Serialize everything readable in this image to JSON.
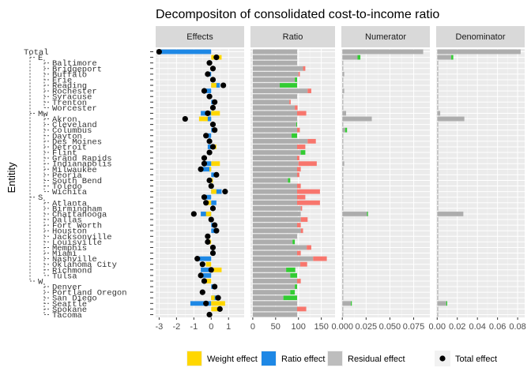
{
  "chart_data": {
    "type": "bar",
    "title": "Decompositon of consolidated cost-to-income ratio",
    "ylabel": "Entitity",
    "panels": [
      {
        "name": "Effects",
        "xlim": [
          -3.2,
          1.9
        ],
        "ticks": [
          -3,
          -2,
          -1,
          0,
          1
        ]
      },
      {
        "name": "Ratio",
        "xlim": [
          -5,
          180
        ],
        "ticks": [
          0,
          50,
          100,
          150
        ]
      },
      {
        "name": "Numerator",
        "xlim": [
          -0.001,
          0.092
        ],
        "ticks": [
          "0.000",
          "0.025",
          "0.050",
          "0.075"
        ]
      },
      {
        "name": "Denominator",
        "xlim": [
          -0.001,
          0.087
        ],
        "ticks": [
          "0.00",
          "0.02",
          "0.04",
          "0.06",
          "0.08"
        ]
      }
    ],
    "legend": [
      {
        "label": "Weight effect",
        "color": "#FFD700"
      },
      {
        "label": "Ratio effect",
        "color": "#1E88E5"
      },
      {
        "label": "Residual effect",
        "color": "#BDBDBD"
      },
      {
        "label": "Total effect",
        "color": "#000000"
      }
    ],
    "colors": {
      "weight": "#FFD700",
      "ratio": "#1E88E5",
      "residual": "#BDBDBD",
      "total": "#000000",
      "positive": "#33CC33",
      "negative": "#F8766D",
      "base": "#ADADAD"
    },
    "entities": [
      {
        "label": "Total",
        "depth": 0,
        "w": 0.0,
        "r": -3.0,
        "t": -3.0,
        "ratio": 97,
        "rd": 0,
        "num": 0.085,
        "nd": 0,
        "den": 0.083,
        "dd": 0
      },
      {
        "label": "E",
        "depth": 1,
        "w": 0.6,
        "r": 0.0,
        "t": 0.3,
        "ratio": 97,
        "rd": 0,
        "num": 0.016,
        "nd": 0.003,
        "den": 0.014,
        "dd": 0.002
      },
      {
        "label": "Baltimore",
        "depth": 2,
        "w": 0.0,
        "r": -0.1,
        "t": -0.1,
        "ratio": 97,
        "rd": 0,
        "num": 0.001,
        "nd": 0,
        "den": 0.001,
        "dd": 0
      },
      {
        "label": "Bridgeport",
        "depth": 2,
        "w": 0.1,
        "r": 0.0,
        "t": 0.1,
        "ratio": 110,
        "rd": 5,
        "num": 0.001,
        "nd": 0,
        "den": 0.001,
        "dd": 0
      },
      {
        "label": "Buffalo",
        "depth": 2,
        "w": 0.0,
        "r": -0.2,
        "t": -0.2,
        "ratio": 100,
        "rd": 3,
        "num": 0.002,
        "nd": 0,
        "den": 0.001,
        "dd": 0
      },
      {
        "label": "Erie",
        "depth": 2,
        "w": 0.1,
        "r": 0.0,
        "t": 0.1,
        "ratio": 97,
        "rd": -5,
        "num": 0.001,
        "nd": 0,
        "den": 0.001,
        "dd": 0
      },
      {
        "label": "Reading",
        "depth": 2,
        "w": 0.3,
        "r": 0.5,
        "t": 0.7,
        "ratio": 97,
        "rd": -38,
        "num": 0.001,
        "nd": 0,
        "den": 0.001,
        "dd": 0
      },
      {
        "label": "Rochester",
        "depth": 2,
        "w": 0.0,
        "r": -0.4,
        "t": -0.4,
        "ratio": 120,
        "rd": 8,
        "num": 0.002,
        "nd": 0,
        "den": 0.001,
        "dd": 0
      },
      {
        "label": "Syracuse",
        "depth": 2,
        "w": 0.0,
        "r": 0.0,
        "t": -0.1,
        "ratio": 97,
        "rd": 0,
        "num": 0.001,
        "nd": 0,
        "den": 0.001,
        "dd": 0
      },
      {
        "label": "Trenton",
        "depth": 2,
        "w": 0.0,
        "r": 0.2,
        "t": 0.2,
        "ratio": 80,
        "rd": 3,
        "num": 0.001,
        "nd": 0,
        "den": 0.001,
        "dd": 0
      },
      {
        "label": "Worcester",
        "depth": 2,
        "w": 0.1,
        "r": 0.0,
        "t": 0.1,
        "ratio": 92,
        "rd": 6,
        "num": 0.001,
        "nd": 0,
        "den": 0.001,
        "dd": 0
      },
      {
        "label": "Mw",
        "depth": 1,
        "w": 0.5,
        "r": -0.6,
        "t": -0.2,
        "ratio": 97,
        "rd": 20,
        "num": 0.004,
        "nd": 0,
        "den": 0.003,
        "dd": 0
      },
      {
        "label": "Akron",
        "depth": 2,
        "w": -0.7,
        "r": -0.2,
        "t": -1.5,
        "ratio": 97,
        "rd": 0,
        "num": 0.031,
        "nd": 0,
        "den": 0.027,
        "dd": 0
      },
      {
        "label": "Cleveland",
        "depth": 2,
        "w": 0.0,
        "r": 0.1,
        "t": 0.1,
        "ratio": 97,
        "rd": -2,
        "num": 0.001,
        "nd": 0,
        "den": 0.001,
        "dd": 0
      },
      {
        "label": "Columbus",
        "depth": 2,
        "w": 0.0,
        "r": 0.2,
        "t": 0.2,
        "ratio": 97,
        "rd": 6,
        "num": 0.003,
        "nd": 0.002,
        "den": 0.001,
        "dd": 0
      },
      {
        "label": "Dayton",
        "depth": 2,
        "w": 0.0,
        "r": -0.3,
        "t": -0.3,
        "ratio": 97,
        "rd": -12,
        "num": 0.001,
        "nd": 0,
        "den": 0.001,
        "dd": 0
      },
      {
        "label": "Des Moines",
        "depth": 2,
        "w": 0.0,
        "r": -0.1,
        "t": -0.1,
        "ratio": 120,
        "rd": 18,
        "num": 0.001,
        "nd": 0,
        "den": 0.001,
        "dd": 0
      },
      {
        "label": "Detroit",
        "depth": 2,
        "w": 0.3,
        "r": -0.2,
        "t": 0.1,
        "ratio": 97,
        "rd": 18,
        "num": 0.001,
        "nd": 0,
        "den": 0.001,
        "dd": 0
      },
      {
        "label": "Flint",
        "depth": 2,
        "w": 0.0,
        "r": -0.1,
        "t": -0.1,
        "ratio": 115,
        "rd": -10,
        "num": 0.001,
        "nd": 0,
        "den": 0.001,
        "dd": 0
      },
      {
        "label": "Grand Rapids",
        "depth": 2,
        "w": 0.0,
        "r": 0.0,
        "t": -0.4,
        "ratio": 97,
        "rd": 5,
        "num": 0.001,
        "nd": 0,
        "den": 0.001,
        "dd": 0
      },
      {
        "label": "Indianapolis",
        "depth": 2,
        "w": 0.5,
        "r": -0.3,
        "t": -0.4,
        "ratio": 100,
        "rd": 40,
        "num": 0.002,
        "nd": 0,
        "den": 0.001,
        "dd": 0
      },
      {
        "label": "Milwaukee",
        "depth": 2,
        "w": -0.1,
        "r": -0.7,
        "t": -0.6,
        "ratio": 97,
        "rd": 8,
        "num": 0.001,
        "nd": 0,
        "den": 0.001,
        "dd": 0
      },
      {
        "label": "Peoria",
        "depth": 2,
        "w": 0.0,
        "r": 0.4,
        "t": 0.3,
        "ratio": 97,
        "rd": 5,
        "num": 0.001,
        "nd": 0,
        "den": 0.001,
        "dd": 0
      },
      {
        "label": "South Bend",
        "depth": 2,
        "w": 0.1,
        "r": 0.0,
        "t": -0.1,
        "ratio": 82,
        "rd": -5,
        "num": 0.001,
        "nd": 0,
        "den": 0.001,
        "dd": 0
      },
      {
        "label": "Toledo",
        "depth": 2,
        "w": 0.0,
        "r": 0.0,
        "t": 0.0,
        "ratio": 97,
        "rd": 8,
        "num": 0.001,
        "nd": 0,
        "den": 0.001,
        "dd": 0
      },
      {
        "label": "Wichita",
        "depth": 2,
        "w": 0.3,
        "r": 0.6,
        "t": 0.8,
        "ratio": 97,
        "rd": 50,
        "num": 0.001,
        "nd": 0,
        "den": 0.001,
        "dd": 0
      },
      {
        "label": "S",
        "depth": 1,
        "w": 0.0,
        "r": -0.3,
        "t": -0.4,
        "ratio": 97,
        "rd": 18,
        "num": 0.001,
        "nd": 0,
        "den": 0.001,
        "dd": 0
      },
      {
        "label": "Atlanta",
        "depth": 2,
        "w": -0.4,
        "r": 0.3,
        "t": -0.3,
        "ratio": 97,
        "rd": 50,
        "num": 0.001,
        "nd": 0,
        "den": 0.001,
        "dd": 0
      },
      {
        "label": "Birmingham",
        "depth": 2,
        "w": 0.0,
        "r": 0.1,
        "t": 0.1,
        "ratio": 105,
        "rd": 3,
        "num": 0.001,
        "nd": 0,
        "den": 0.001,
        "dd": 0
      },
      {
        "label": "Chattanooga",
        "depth": 2,
        "w": -0.3,
        "r": -0.6,
        "t": -1.0,
        "ratio": 105,
        "rd": 0,
        "num": 0.027,
        "nd": -0.001,
        "den": 0.026,
        "dd": 0
      },
      {
        "label": "Dallas",
        "depth": 2,
        "w": 0.0,
        "r": 0.0,
        "t": 0.0,
        "ratio": 105,
        "rd": 15,
        "num": 0.001,
        "nd": 0,
        "den": 0.001,
        "dd": 0
      },
      {
        "label": "Fort Worth",
        "depth": 2,
        "w": 0.0,
        "r": 0.2,
        "t": 0.2,
        "ratio": 97,
        "rd": 8,
        "num": 0.001,
        "nd": 0,
        "den": 0.001,
        "dd": 0
      },
      {
        "label": "Houston",
        "depth": 2,
        "w": 0.0,
        "r": 0.3,
        "t": 0.3,
        "ratio": 105,
        "rd": 5,
        "num": 0.001,
        "nd": 0,
        "den": 0.001,
        "dd": 0
      },
      {
        "label": "Jacksonville",
        "depth": 2,
        "w": 0.0,
        "r": 0.0,
        "t": -0.2,
        "ratio": 97,
        "rd": 0,
        "num": 0.001,
        "nd": 0,
        "den": 0.001,
        "dd": 0
      },
      {
        "label": "Louisville",
        "depth": 2,
        "w": -0.2,
        "r": 0.0,
        "t": -0.2,
        "ratio": 92,
        "rd": -5,
        "num": 0.001,
        "nd": 0,
        "den": 0.001,
        "dd": 0
      },
      {
        "label": "Memphis",
        "depth": 2,
        "w": 0.0,
        "r": 0.2,
        "t": 0.1,
        "ratio": 118,
        "rd": 10,
        "num": 0.001,
        "nd": 0,
        "den": 0.001,
        "dd": 0
      },
      {
        "label": "Miami",
        "depth": 2,
        "w": 0.0,
        "r": 0.2,
        "t": 0.1,
        "ratio": 97,
        "rd": 8,
        "num": 0.001,
        "nd": 0,
        "den": 0.001,
        "dd": 0
      },
      {
        "label": "Nashville",
        "depth": 2,
        "w": 0.0,
        "r": -0.8,
        "t": -0.8,
        "ratio": 132,
        "rd": 30,
        "num": 0.001,
        "nd": 0,
        "den": 0.001,
        "dd": 0
      },
      {
        "label": "Oklahoma City",
        "depth": 2,
        "w": -0.3,
        "r": 0.0,
        "t": -0.5,
        "ratio": 104,
        "rd": 15,
        "num": 0.001,
        "nd": 0,
        "den": 0.001,
        "dd": 0
      },
      {
        "label": "Richmond",
        "depth": 2,
        "w": 0.6,
        "r": -0.6,
        "t": 0.0,
        "ratio": 93,
        "rd": -20,
        "num": 0.001,
        "nd": 0,
        "den": 0.001,
        "dd": 0
      },
      {
        "label": "Tulsa",
        "depth": 2,
        "w": 0.0,
        "r": -0.6,
        "t": -0.6,
        "ratio": 97,
        "rd": -15,
        "num": 0.001,
        "nd": 0,
        "den": 0.001,
        "dd": 0
      },
      {
        "label": "W",
        "depth": 1,
        "w": -0.3,
        "r": 0.0,
        "t": -0.4,
        "ratio": 97,
        "rd": 8,
        "num": 0.001,
        "nd": 0,
        "den": 0.001,
        "dd": 0
      },
      {
        "label": "Denver",
        "depth": 2,
        "w": 0.0,
        "r": 0.2,
        "t": 0.2,
        "ratio": 97,
        "rd": -5,
        "num": 0.001,
        "nd": 0,
        "den": 0.001,
        "dd": 0
      },
      {
        "label": "Portland Oregon",
        "depth": 2,
        "w": 0.0,
        "r": 0.0,
        "t": -0.5,
        "ratio": 92,
        "rd": -10,
        "num": 0.001,
        "nd": 0,
        "den": 0.001,
        "dd": 0
      },
      {
        "label": "San Diego",
        "depth": 2,
        "w": 0.2,
        "r": 0.4,
        "t": 0.4,
        "ratio": 97,
        "rd": -30,
        "num": 0.001,
        "nd": 0,
        "den": 0.001,
        "dd": 0
      },
      {
        "label": "Seattle",
        "depth": 2,
        "w": 0.8,
        "r": -1.2,
        "t": -0.3,
        "ratio": 97,
        "rd": 0,
        "num": 0.009,
        "nd": 0.001,
        "den": 0.009,
        "dd": 0.001
      },
      {
        "label": "Spokane",
        "depth": 2,
        "w": 0.6,
        "r": 0.0,
        "t": 0.5,
        "ratio": 97,
        "rd": 20,
        "num": 0.001,
        "nd": 0,
        "den": 0.001,
        "dd": 0
      },
      {
        "label": "Tacoma",
        "depth": 2,
        "w": 0.0,
        "r": -0.1,
        "t": -0.1,
        "ratio": 97,
        "rd": 0,
        "num": 0.001,
        "nd": 0,
        "den": 0.001,
        "dd": 0
      }
    ]
  }
}
